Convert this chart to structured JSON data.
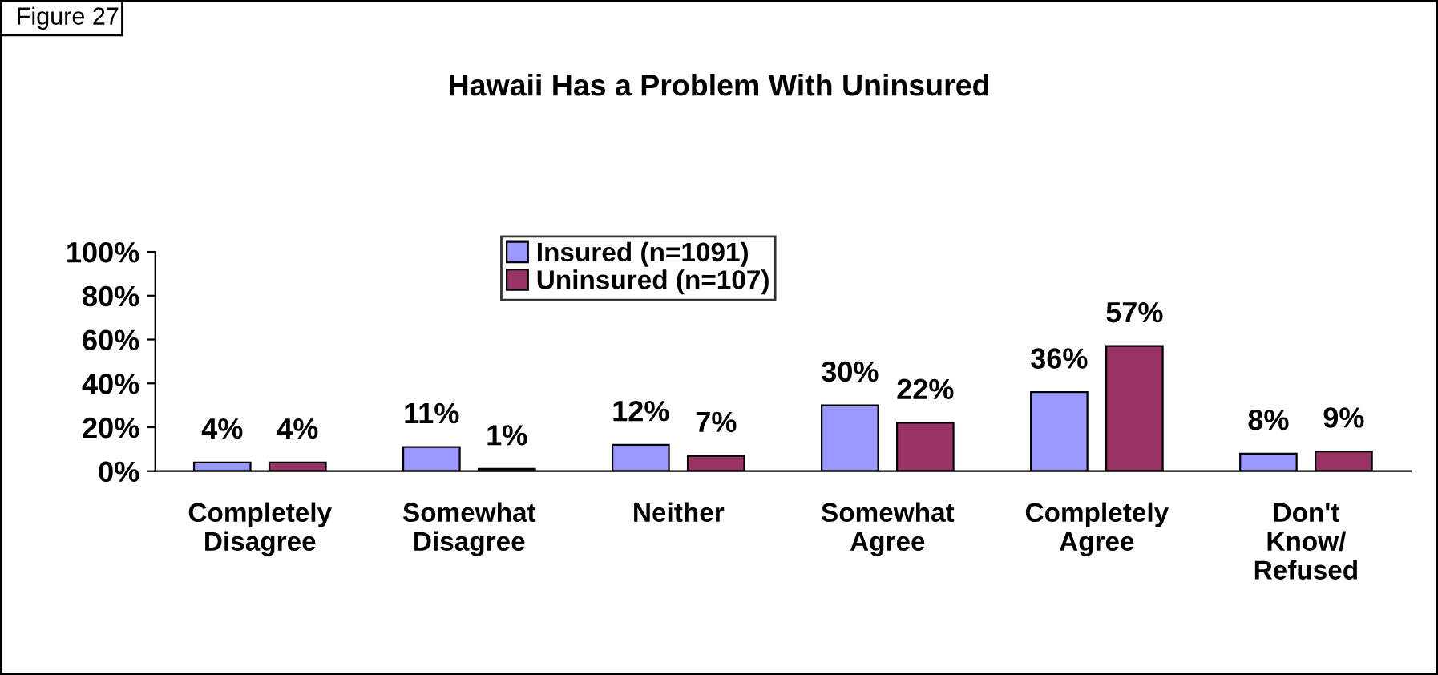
{
  "chart_data": {
    "type": "bar",
    "title": "Hawaii Has a Problem With Uninsured",
    "annotations": [
      "Figure 27"
    ],
    "categories": [
      "Completely\nDisagree",
      "Somewhat\nDisagree",
      "Neither",
      "Somewhat\nAgree",
      "Completely\nAgree",
      "Don't\nKnow/\nRefused"
    ],
    "series": [
      {
        "name": "Insured (n=1091)",
        "color": "#9999ff",
        "values": [
          4,
          11,
          12,
          30,
          36,
          8
        ],
        "value_labels": [
          "4%",
          "11%",
          "12%",
          "30%",
          "36%",
          "8%"
        ]
      },
      {
        "name": "Uninsured (n=107)",
        "color": "#993366",
        "values": [
          4,
          1,
          7,
          22,
          57,
          9
        ],
        "value_labels": [
          "4%",
          "1%",
          "7%",
          "22%",
          "57%",
          "9%"
        ]
      }
    ],
    "ylim": [
      0,
      100
    ],
    "yticks": [
      {
        "value": 0,
        "label": "0%"
      },
      {
        "value": 20,
        "label": "20%"
      },
      {
        "value": 40,
        "label": "40%"
      },
      {
        "value": 60,
        "label": "60%"
      },
      {
        "value": 80,
        "label": "80%"
      },
      {
        "value": 100,
        "label": "100%"
      }
    ],
    "grid": false,
    "legend": "top"
  }
}
